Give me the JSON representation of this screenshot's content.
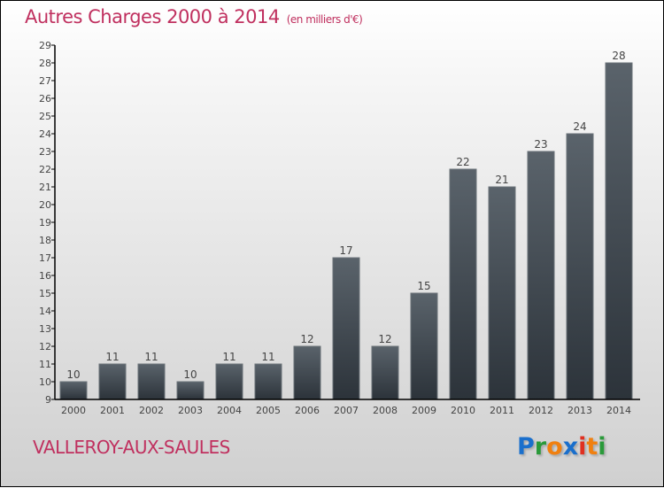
{
  "chart_data": {
    "type": "bar",
    "title": "Autres Charges 2000 à 2014",
    "unit": "(en milliers d'€)",
    "categories": [
      "2000",
      "2001",
      "2002",
      "2003",
      "2004",
      "2005",
      "2006",
      "2007",
      "2008",
      "2009",
      "2010",
      "2011",
      "2012",
      "2013",
      "2014"
    ],
    "values": [
      10,
      11,
      11,
      10,
      11,
      11,
      12,
      17,
      12,
      15,
      22,
      21,
      23,
      24,
      28
    ],
    "xlabel": "",
    "ylabel": "",
    "ylim": [
      9,
      29
    ],
    "yticks": [
      9,
      10,
      11,
      12,
      13,
      14,
      15,
      16,
      17,
      18,
      19,
      20,
      21,
      22,
      23,
      24,
      25,
      26,
      27,
      28,
      29
    ],
    "grid": false,
    "bar_color": "#3a4149"
  },
  "town": "VALLEROY-AUX-SAULES",
  "logo": {
    "letters": [
      "P",
      "r",
      "o",
      "x",
      "i",
      "t",
      "i"
    ],
    "colors": [
      "#1a6fcc",
      "#2a9a3a",
      "#f08010",
      "#1a6fcc",
      "#e03020",
      "#f08010",
      "#2a9a3a"
    ]
  }
}
